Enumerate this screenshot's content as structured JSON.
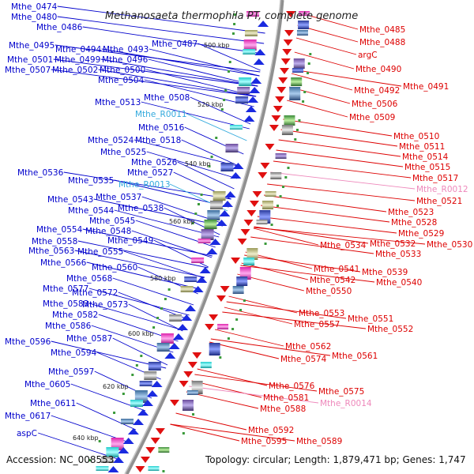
{
  "title": "Methanosaeta thermophila PT, complete genome",
  "footer": {
    "accession": "Accession: NC_008553",
    "topology": "Topology: circular; Length: 1,879,471 bp; Genes: 1,747"
  },
  "colors": {
    "left_label": "#0000cc",
    "right_label": "#dd0000",
    "left_rna": "#33aadd",
    "right_rna": "#ee88bb",
    "backbone": "#909090",
    "dot": "#3a9a3a"
  },
  "ticks": [
    "500 kbp",
    "520 kbp",
    "540 kbp",
    "560 kbp",
    "580 kbp",
    "600 kbp",
    "620 kbp",
    "640 kbp"
  ],
  "left_labels": [
    "Mthe_0474",
    "Mthe_0480",
    "Mthe_0486",
    "Mthe_0487",
    "Mthe_0495",
    "Mthe_0494",
    "Mthe_0493",
    "Mthe_0501",
    "Mthe_0499",
    "Mthe_0496",
    "Mthe_0507",
    "Mthe_0502",
    "Mthe_0500",
    "Mthe_0504",
    "Mthe_0508",
    "Mthe_0513",
    "Mthe_R0011",
    "Mthe_0516",
    "Mthe_0524",
    "Mthe_0518",
    "Mthe_0525",
    "Mthe_0526",
    "Mthe_0536",
    "Mthe_0527",
    "Mthe_0535",
    "Mthe_R0013",
    "Mthe_0537",
    "Mthe_0543",
    "Mthe_0538",
    "Mthe_0544",
    "Mthe_0545",
    "Mthe_0554",
    "Mthe_0548",
    "Mthe_0558",
    "Mthe_0549",
    "Mthe_0563",
    "Mthe_0555",
    "Mthe_0566",
    "Mthe_0560",
    "Mthe_0568",
    "Mthe_0577",
    "Mthe_0572",
    "Mthe_0583",
    "Mthe_0573",
    "Mthe_0582",
    "Mthe_0586",
    "Mthe_0587",
    "Mthe_0596",
    "Mthe_0594",
    "Mthe_0597",
    "Mthe_0605",
    "Mthe_0611",
    "Mthe_0617",
    "aspC"
  ],
  "right_labels": [
    "Mthe_0485",
    "Mthe_0488",
    "argC",
    "Mthe_0490",
    "Mthe_0491",
    "Mthe_0492",
    "Mthe_0506",
    "Mthe_0509",
    "Mthe_0510",
    "Mthe_0511",
    "Mthe_0514",
    "Mthe_0515",
    "Mthe_0517",
    "Mthe_R0012",
    "Mthe_0521",
    "Mthe_0523",
    "Mthe_0528",
    "Mthe_0529",
    "Mthe_0530",
    "Mthe_0534",
    "Mthe_0532",
    "Mthe_0533",
    "Mthe_0541",
    "Mthe_0539",
    "Mthe_0542",
    "Mthe_0540",
    "Mthe_0550",
    "Mthe_0553",
    "Mthe_0551",
    "Mthe_0557",
    "Mthe_0552",
    "Mthe_0562",
    "Mthe_0561",
    "Mthe_0574",
    "Mthe_0576",
    "Mthe_0575",
    "Mthe_0581",
    "Mthe_R0014",
    "Mthe_0588",
    "Mthe_0592",
    "Mthe_0595",
    "Mthe_0589"
  ]
}
